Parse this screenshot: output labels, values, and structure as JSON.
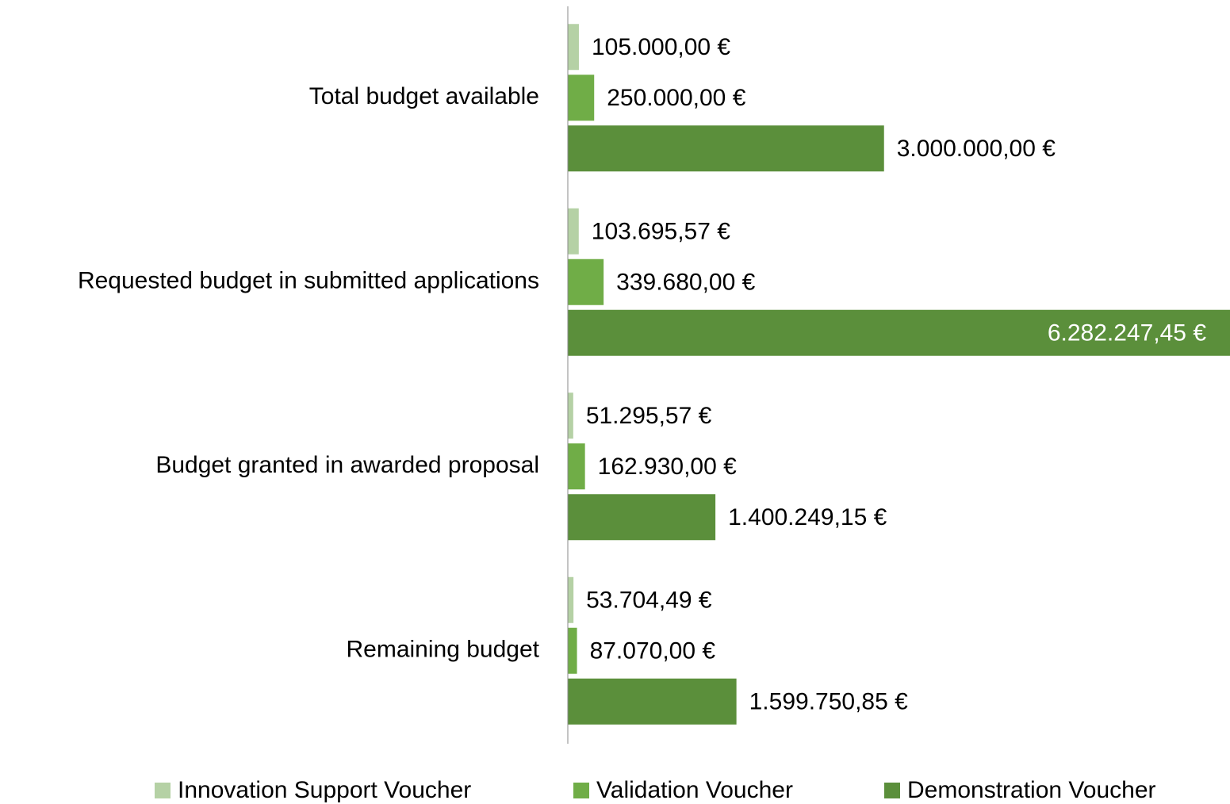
{
  "chart_data": {
    "type": "bar",
    "orientation": "horizontal",
    "categories": [
      "Total budget available",
      "Requested budget in submitted applications",
      "Budget granted in awarded proposal",
      "Remaining budget"
    ],
    "series": [
      {
        "name": "Innovation Support Voucher",
        "color": "#b5d1a5",
        "values": [
          105000.0,
          103695.57,
          51295.57,
          53704.49
        ],
        "value_labels": [
          "105.000,00 €",
          "103.695,57 €",
          "51.295,57 €",
          "53.704,49 €"
        ]
      },
      {
        "name": "Validation Voucher",
        "color": "#70ad47",
        "values": [
          250000.0,
          339680.0,
          162930.0,
          87070.0
        ],
        "value_labels": [
          "250.000,00 €",
          "339.680,00 €",
          "162.930,00 €",
          "87.070,00 €"
        ]
      },
      {
        "name": "Demonstration Voucher",
        "color": "#5b8f3b",
        "values": [
          3000000.0,
          6282247.45,
          1400249.15,
          1599750.85
        ],
        "value_labels": [
          "3.000.000,00 €",
          "6.282.247,45 €",
          "1.400.249,15 €",
          "1.599.750,85 €"
        ]
      }
    ]
  }
}
